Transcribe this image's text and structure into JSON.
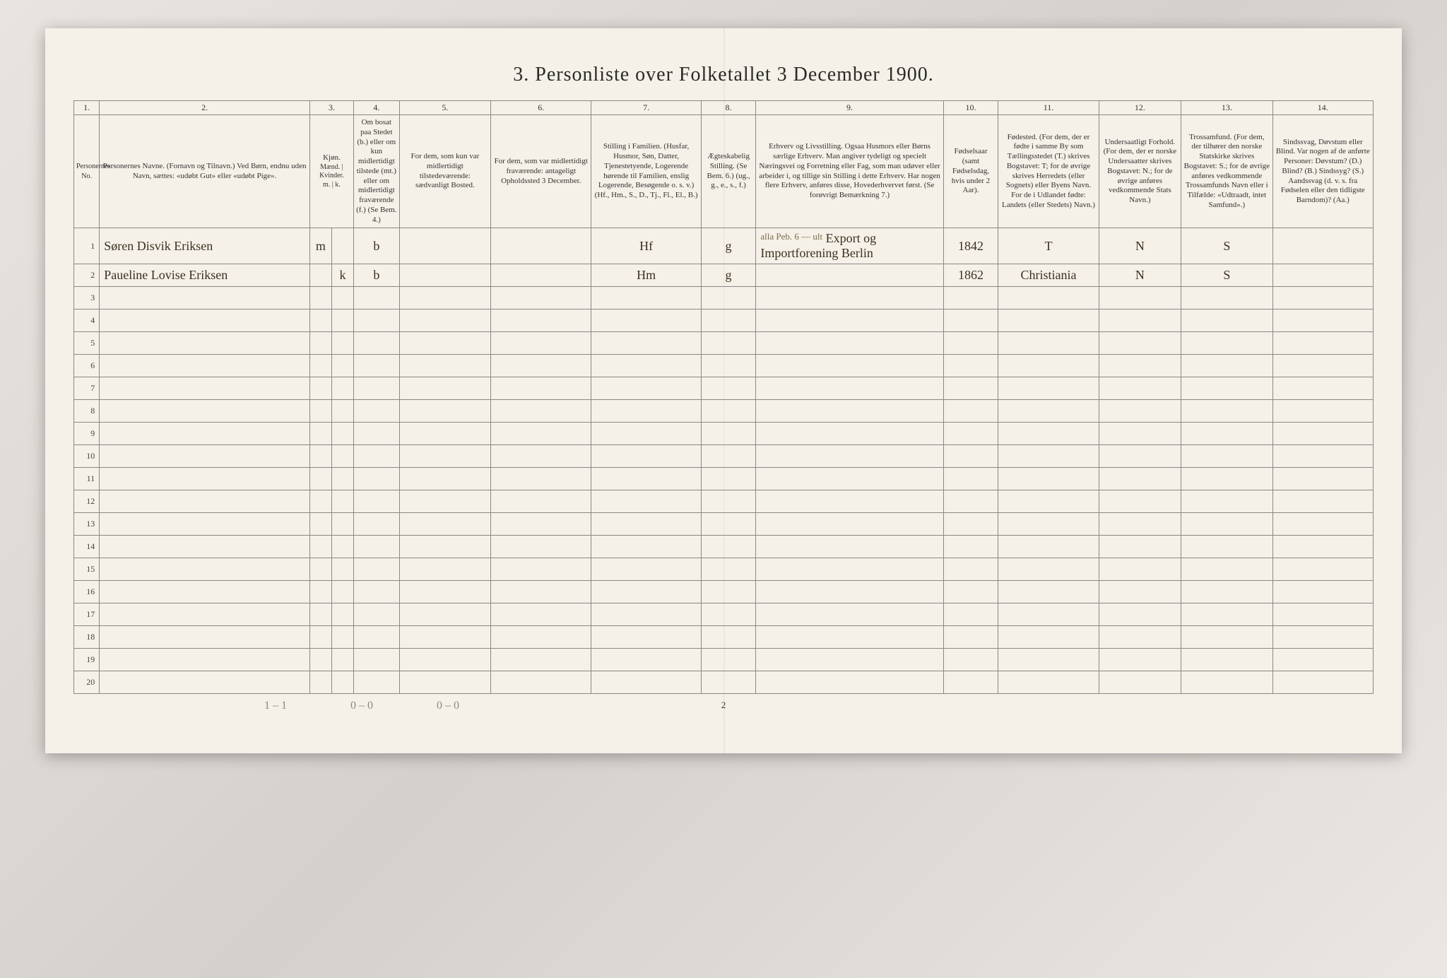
{
  "title": "3. Personliste over Folketallet 3 December 1900.",
  "column_numbers": [
    "1.",
    "2.",
    "3.",
    "4.",
    "5.",
    "6.",
    "7.",
    "8.",
    "9.",
    "10.",
    "11.",
    "12.",
    "13.",
    "14."
  ],
  "headers": {
    "col1": "Personernes No.",
    "col2": "Personernes Navne.\n(Fornavn og Tilnavn.)\nVed Børn, endnu uden Navn, sættes: «udøbt Gut» eller «udøbt Pige».",
    "col3_top": "Kjøn.",
    "col3_sub": "Mænd. | Kvinder.",
    "col3_mk": "m. | k.",
    "col4": "Om bosat paa Stedet (b.) eller om kun midlertidigt tilstede (mt.) eller om midlertidigt fraværende (f.)\n(Se Bem. 4.)",
    "col5": "For dem, som kun var midlertidigt tilstedeværende:\nsædvanligt Bosted.",
    "col6": "For dem, som var midlertidigt fraværende:\nantageligt Opholdssted 3 December.",
    "col7": "Stilling i Familien.\n(Husfar, Husmor, Søn, Datter, Tjenestetyende, Logerende hørende til Familien, enslig Logerende, Besøgende o. s. v.)\n(Hf., Hm., S., D., Tj., Fl., El., B.)",
    "col8": "Ægteskabelig Stilling.\n(Se Bem. 6.)\n(ug., g., e., s., f.)",
    "col9": "Erhverv og Livsstilling.\nOgsaa Husmors eller Børns særlige Erhverv. Man angiver tydeligt og specielt Næringsvei og Forretning eller Fag, som man udøver eller arbeider i, og tillige sin Stilling i dette Erhverv. Har nogen flere Erhverv, anføres disse, Hovederhvervet først.\n(Se forøvrigt Bemærkning 7.)",
    "col10": "Fødselsaar (samt Fødselsdag, hvis under 2 Aar).",
    "col11": "Fødested.\n(For dem, der er fødte i samme By som Tællingsstedet (T.) skrives Bogstavet: T; for de øvrige skrives Herredets (eller Sognets) eller Byens Navn. For de i Udlandet fødte: Landets (eller Stedets) Navn.)",
    "col12": "Undersaatligt Forhold.\n(For dem, der er norske Undersaatter skrives Bogstavet: N.; for de øvrige anføres vedkommende Stats Navn.)",
    "col13": "Trossamfund.\n(For dem, der tilhører den norske Statskirke skrives Bogstavet: S.; for de øvrige anføres vedkommende Trossamfunds Navn eller i Tilfælde: «Udtraadt, intet Samfund».)",
    "col14": "Sindssvag, Døvstum eller Blind.\nVar nogen af de anførte Personer:\nDøvstum? (D.)\nBlind? (B.)\nSindssyg? (S.)\nAandssvag (d. v. s. fra Fødselen eller den tidligste Barndom)? (Aa.)"
  },
  "rows": [
    {
      "num": "1",
      "name": "Søren Disvik Eriksen",
      "sex_m": "m",
      "sex_k": "",
      "status": "b",
      "col5": "",
      "col6": "",
      "col7": "Hf",
      "col8": "g",
      "col9_note": "alla Peb. 6 — ult",
      "col9": "Export og Importforening Berlin",
      "col10": "1842",
      "col11": "T",
      "col12": "N",
      "col13": "S",
      "col14": ""
    },
    {
      "num": "2",
      "name": "Paueline Lovise Eriksen",
      "sex_m": "",
      "sex_k": "k",
      "status": "b",
      "col5": "",
      "col6": "",
      "col7": "Hm",
      "col8": "g",
      "col9_note": "",
      "col9": "",
      "col10": "1862",
      "col11": "Christiania",
      "col12": "N",
      "col13": "S",
      "col14": ""
    }
  ],
  "empty_rows": [
    "3",
    "4",
    "5",
    "6",
    "7",
    "8",
    "9",
    "10",
    "11",
    "12",
    "13",
    "14",
    "15",
    "16",
    "17",
    "18",
    "19",
    "20"
  ],
  "footer": {
    "a": "1 – 1",
    "b": "0 – 0",
    "c": "0 – 0"
  },
  "page_number": "2",
  "colors": {
    "paper": "#f5f1e8",
    "border": "#888888",
    "text": "#333333",
    "handwriting": "#3a3020",
    "faded": "#888888"
  }
}
